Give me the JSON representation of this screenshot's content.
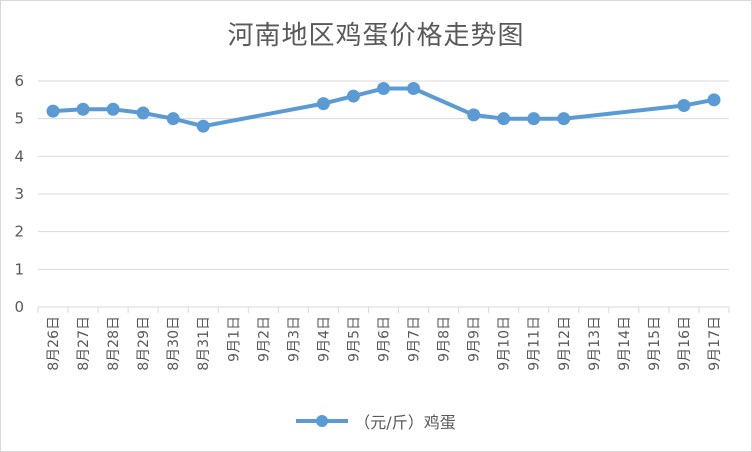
{
  "chart_data": {
    "type": "line",
    "title": "河南地区鸡蛋价格走势图",
    "categories": [
      "8月26日",
      "8月27日",
      "8月28日",
      "8月29日",
      "8月30日",
      "8月31日",
      "9月1日",
      "9月2日",
      "9月3日",
      "9月4日",
      "9月5日",
      "9月6日",
      "9月7日",
      "9月8日",
      "9月9日",
      "9月10日",
      "9月11日",
      "9月12日",
      "9月13日",
      "9月14日",
      "9月15日",
      "9月16日",
      "9月17日"
    ],
    "series": [
      {
        "name": "（元/斤）鸡蛋",
        "color": "#5b9bd5",
        "values": [
          5.2,
          5.25,
          5.25,
          5.15,
          5.0,
          4.8,
          null,
          null,
          null,
          5.4,
          5.6,
          5.8,
          5.8,
          null,
          5.1,
          5.0,
          5.0,
          5.0,
          null,
          null,
          null,
          5.35,
          5.5
        ]
      }
    ],
    "yticks": [
      "0",
      "1",
      "2",
      "3",
      "4",
      "5",
      "6"
    ],
    "ylim": [
      0,
      6
    ],
    "gaps": "span",
    "grid": true,
    "legend": "bottom"
  }
}
